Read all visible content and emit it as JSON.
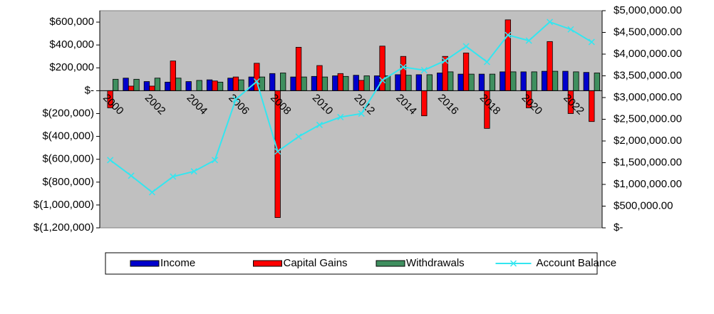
{
  "chart_data": {
    "type": "bar_line",
    "categories": [
      "2000",
      null,
      "2002",
      null,
      "2004",
      null,
      "2006",
      null,
      "2008",
      null,
      "2010",
      null,
      "2012",
      null,
      "2014",
      null,
      "2016",
      null,
      "2018",
      null,
      "2020",
      null,
      "2022",
      null
    ],
    "series": [
      {
        "name": "Income",
        "color": "#0000cc",
        "type": "bar",
        "values": [
          0,
          110000,
          80000,
          75000,
          80000,
          95000,
          110000,
          120000,
          150000,
          120000,
          125000,
          130000,
          135000,
          130000,
          140000,
          140000,
          155000,
          145000,
          145000,
          165000,
          165000,
          170000,
          170000,
          160000
        ]
      },
      {
        "name": "Capital Gains",
        "color": "#ff0000",
        "type": "bar",
        "values": [
          -150000,
          40000,
          40000,
          260000,
          0,
          85000,
          120000,
          240000,
          -1110000,
          380000,
          220000,
          150000,
          90000,
          390000,
          300000,
          -220000,
          300000,
          330000,
          -330000,
          620000,
          -150000,
          430000,
          -200000,
          -270000
        ]
      },
      {
        "name": "Withdrawals",
        "color": "#3f8f5f",
        "type": "bar",
        "values": [
          100000,
          100000,
          110000,
          110000,
          90000,
          75000,
          95000,
          120000,
          155000,
          120000,
          120000,
          125000,
          130000,
          130000,
          135000,
          140000,
          165000,
          145000,
          145000,
          165000,
          165000,
          170000,
          165000,
          155000
        ]
      },
      {
        "name": "Account Balance",
        "color": "#33e6f0",
        "type": "line",
        "axis": "y2",
        "values": [
          1560000,
          1200000,
          820000,
          1180000,
          1300000,
          1560000,
          2960000,
          3370000,
          1760000,
          2100000,
          2370000,
          2550000,
          2630000,
          3400000,
          3700000,
          3630000,
          3850000,
          4180000,
          3820000,
          4440000,
          4310000,
          4740000,
          4570000,
          4280000
        ]
      }
    ],
    "ylim": [
      -1200000,
      700000
    ],
    "yticks": [
      {
        "value": -1200000,
        "label": "$(1,200,000)"
      },
      {
        "value": -1000000,
        "label": "$(1,000,000)"
      },
      {
        "value": -800000,
        "label": "$(800,000)"
      },
      {
        "value": -600000,
        "label": "$(600,000)"
      },
      {
        "value": -400000,
        "label": "$(400,000)"
      },
      {
        "value": -200000,
        "label": "$(200,000)"
      },
      {
        "value": 0,
        "label": "$-"
      },
      {
        "value": 200000,
        "label": "$200,000"
      },
      {
        "value": 400000,
        "label": "$400,000"
      },
      {
        "value": 600000,
        "label": "$600,000"
      }
    ],
    "y2lim": [
      0,
      5000000
    ],
    "y2ticks": [
      {
        "value": 0,
        "label": "$-"
      },
      {
        "value": 500000,
        "label": "$500,000.00"
      },
      {
        "value": 1000000,
        "label": "$1,000,000.00"
      },
      {
        "value": 1500000,
        "label": "$1,500,000.00"
      },
      {
        "value": 2000000,
        "label": "$2,000,000.00"
      },
      {
        "value": 2500000,
        "label": "$2,500,000.00"
      },
      {
        "value": 3000000,
        "label": "$3,000,000.00"
      },
      {
        "value": 3500000,
        "label": "$3,500,000.00"
      },
      {
        "value": 4000000,
        "label": "$4,000,000.00"
      },
      {
        "value": 4500000,
        "label": "$4,500,000.00"
      },
      {
        "value": 5000000,
        "label": "$5,000,000.00"
      }
    ],
    "legend": "bottom"
  }
}
